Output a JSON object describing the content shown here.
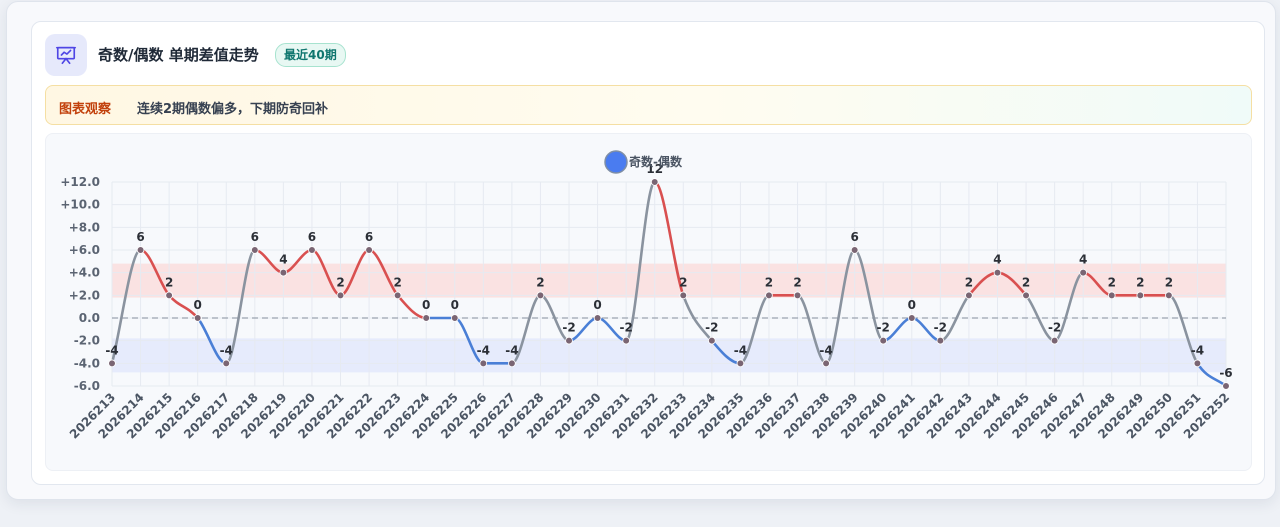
{
  "header": {
    "title": "奇数/偶数 单期差值走势",
    "badge": "最近40期",
    "icon": "presentation-chart-icon"
  },
  "note": {
    "label": "图表观察",
    "text": "连续2期偶数偏多，下期防奇回补"
  },
  "colors": {
    "positive": "#d95050",
    "negative": "#4a7fd6",
    "neutral": "#8a939f",
    "legend_dot": "#4a7cf0",
    "high_band": "#fbdada",
    "low_band": "#e3e9fb",
    "point": "#7a6573"
  },
  "chart_data": {
    "type": "line",
    "legend": [
      "奇数-偶数"
    ],
    "x": [
      "2026213",
      "2026214",
      "2026215",
      "2026216",
      "2026217",
      "2026218",
      "2026219",
      "2026220",
      "2026221",
      "2026222",
      "2026223",
      "2026224",
      "2026225",
      "2026226",
      "2026227",
      "2026228",
      "2026229",
      "2026230",
      "2026231",
      "2026232",
      "2026233",
      "2026234",
      "2026235",
      "2026236",
      "2026237",
      "2026238",
      "2026239",
      "2026240",
      "2026241",
      "2026242",
      "2026243",
      "2026244",
      "2026245",
      "2026246",
      "2026247",
      "2026248",
      "2026249",
      "2026250",
      "2026251",
      "2026252"
    ],
    "series": [
      {
        "name": "奇数-偶数",
        "values": [
          -4,
          6,
          2,
          0,
          -4,
          6,
          4,
          6,
          2,
          6,
          2,
          0,
          0,
          -4,
          -4,
          2,
          -2,
          0,
          -2,
          12,
          2,
          -2,
          -4,
          2,
          2,
          -4,
          6,
          -2,
          0,
          -2,
          2,
          4,
          2,
          -2,
          4,
          2,
          2,
          2,
          -4,
          -6
        ]
      }
    ],
    "data_labels": [
      "-4",
      "6",
      "2",
      "0",
      "-4",
      "6",
      "4",
      "6",
      "2",
      "6",
      "2",
      "0",
      "0",
      "-4",
      "-4",
      "2",
      "-2",
      "0",
      "-2",
      "12",
      "2",
      "-2",
      "-4",
      "2",
      "2",
      "-4",
      "6",
      "-2",
      "0",
      "-2",
      "2",
      "4",
      "2",
      "-2",
      "4",
      "2",
      "2",
      "2",
      "-4",
      "-6"
    ],
    "y_ticks": [
      "+12.0",
      "+10.0",
      "+8.0",
      "+6.0",
      "+4.0",
      "+2.0",
      "0.0",
      "-2.0",
      "-4.0",
      "-6.0"
    ],
    "ylim": [
      -6,
      12
    ],
    "high_band": [
      1.8,
      4.8
    ],
    "low_band": [
      -4.8,
      -1.8
    ],
    "zero_line": "dashed",
    "grid": true,
    "legend_position": "top-center"
  }
}
